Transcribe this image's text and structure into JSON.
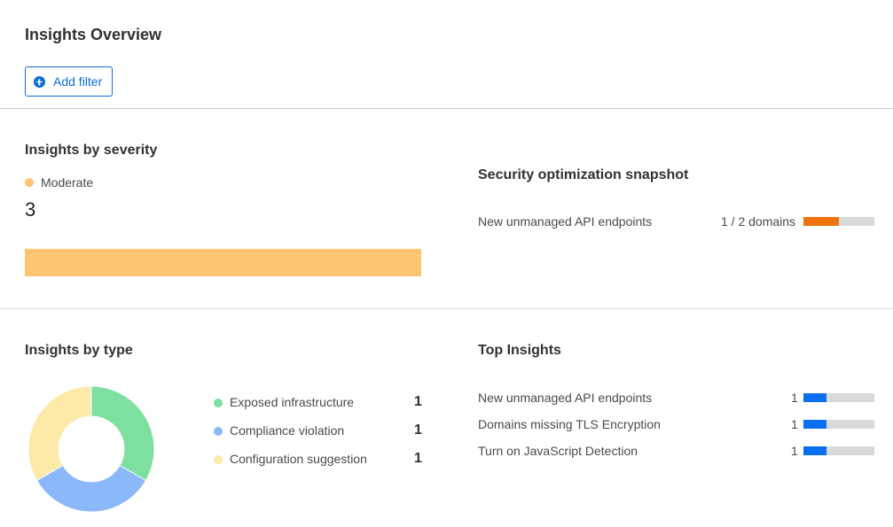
{
  "header": {
    "title": "Insights Overview",
    "add_filter_label": "Add filter"
  },
  "severity": {
    "title": "Insights by severity",
    "legend_label": "Moderate",
    "count": "3",
    "color": "#fdc472",
    "fill_fraction": 1.0
  },
  "snapshot": {
    "title": "Security optimization snapshot",
    "items": [
      {
        "label": "New unmanaged API endpoints",
        "value": "1 / 2 domains",
        "fraction": 0.5,
        "color": "#ee730a"
      }
    ]
  },
  "by_type": {
    "title": "Insights by type",
    "items": [
      {
        "label": "Exposed infrastructure",
        "value": "1",
        "color": "#7ee0a0"
      },
      {
        "label": "Compliance violation",
        "value": "1",
        "color": "#8ab8f8"
      },
      {
        "label": "Configuration suggestion",
        "value": "1",
        "color": "#fde9a8"
      }
    ]
  },
  "top_insights": {
    "title": "Top Insights",
    "bar_color": "#0a6ff0",
    "items": [
      {
        "label": "New unmanaged API endpoints",
        "value": "1",
        "fraction": 0.33
      },
      {
        "label": "Domains missing TLS Encryption",
        "value": "1",
        "fraction": 0.33
      },
      {
        "label": "Turn on JavaScript Detection",
        "value": "1",
        "fraction": 0.33
      }
    ]
  }
}
